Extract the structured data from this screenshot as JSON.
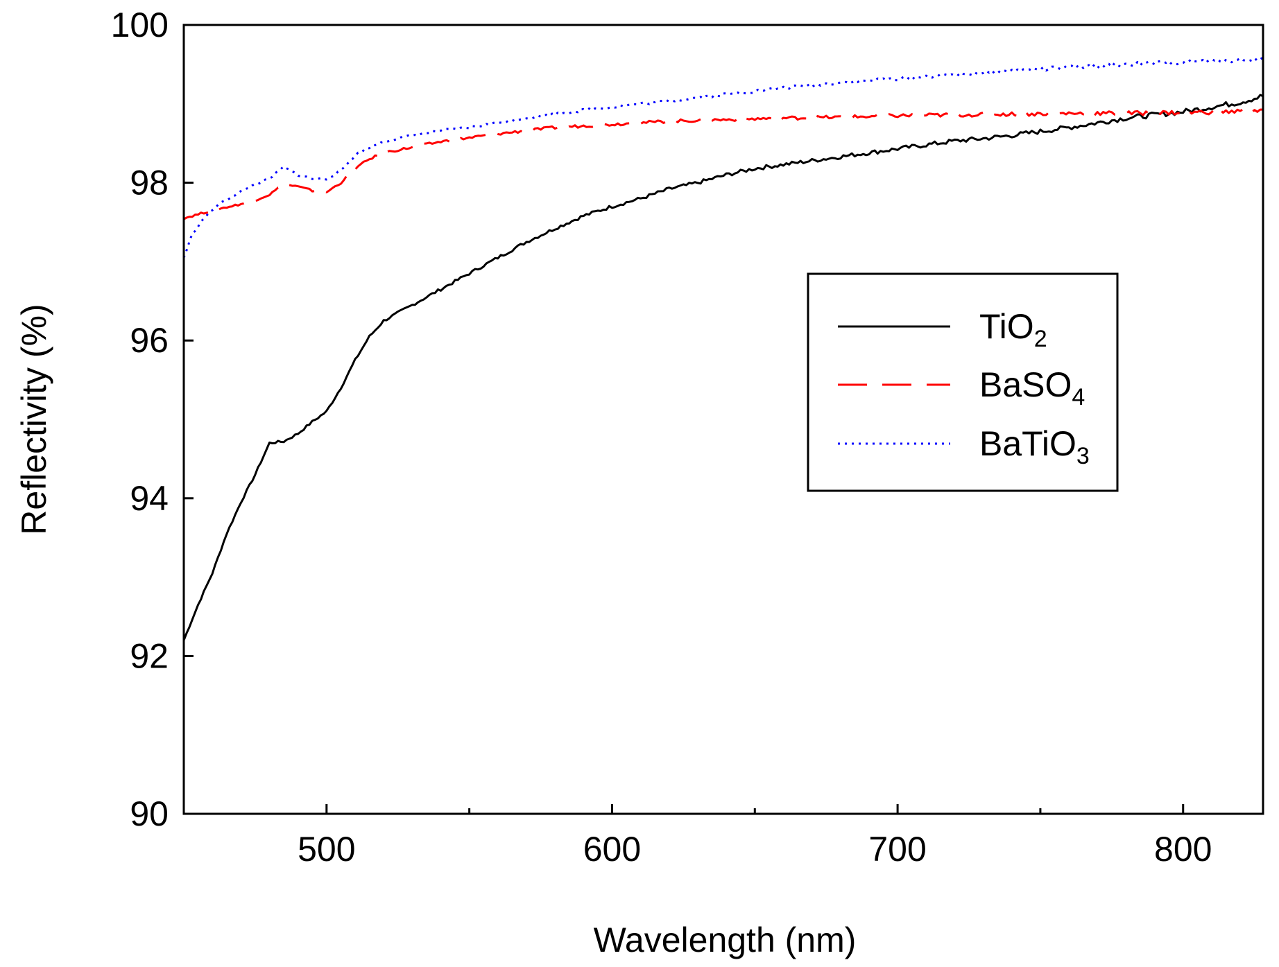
{
  "chart_data": {
    "type": "line",
    "title": "",
    "xlabel": "Wavelength (nm)",
    "ylabel": "Reflectivity (%)",
    "xlim": [
      450,
      828
    ],
    "ylim": [
      90,
      100
    ],
    "x_ticks": [
      500,
      600,
      700,
      800
    ],
    "x_minor_ticks": [
      450,
      550,
      650,
      750
    ],
    "y_ticks": [
      90,
      92,
      94,
      96,
      98,
      100
    ],
    "grid": false,
    "legend_position": "center-right",
    "series": [
      {
        "name": "TiO2",
        "label_main": "TiO",
        "label_sub": "2",
        "color": "#000000",
        "style": "solid",
        "x": [
          450,
          455,
          460,
          465,
          470,
          475,
          480,
          485,
          490,
          495,
          500,
          505,
          510,
          515,
          520,
          525,
          530,
          540,
          550,
          560,
          570,
          580,
          590,
          600,
          610,
          620,
          630,
          640,
          650,
          660,
          670,
          680,
          690,
          700,
          710,
          720,
          730,
          740,
          750,
          760,
          770,
          780,
          790,
          800,
          810,
          820,
          828
        ],
        "y": [
          92.2,
          92.65,
          93.05,
          93.55,
          93.95,
          94.3,
          94.7,
          94.72,
          94.82,
          94.97,
          95.1,
          95.4,
          95.75,
          96.05,
          96.25,
          96.35,
          96.45,
          96.65,
          96.85,
          97.05,
          97.25,
          97.42,
          97.58,
          97.7,
          97.8,
          97.92,
          98.0,
          98.1,
          98.18,
          98.23,
          98.28,
          98.33,
          98.38,
          98.43,
          98.48,
          98.53,
          98.56,
          98.6,
          98.65,
          98.7,
          98.76,
          98.82,
          98.86,
          98.9,
          98.96,
          99.02,
          99.1
        ]
      },
      {
        "name": "BaSO4",
        "label_main": "BaSO",
        "label_sub": "4",
        "color": "#ff0000",
        "style": "dashed",
        "x": [
          450,
          460,
          470,
          475,
          480,
          485,
          490,
          495,
          500,
          505,
          510,
          515,
          520,
          530,
          540,
          550,
          560,
          570,
          580,
          590,
          600,
          610,
          620,
          640,
          660,
          680,
          700,
          720,
          740,
          760,
          780,
          800,
          815,
          828
        ],
        "y": [
          97.55,
          97.65,
          97.73,
          97.78,
          97.85,
          97.98,
          97.95,
          97.9,
          97.88,
          98.0,
          98.18,
          98.3,
          98.38,
          98.45,
          98.52,
          98.57,
          98.62,
          98.66,
          98.7,
          98.72,
          98.74,
          98.76,
          98.78,
          98.8,
          98.82,
          98.83,
          98.85,
          98.86,
          98.87,
          98.88,
          98.88,
          98.89,
          98.9,
          98.92
        ]
      },
      {
        "name": "BaTiO3",
        "label_main": "BaTiO",
        "label_sub": "3",
        "color": "#0000ff",
        "style": "dotted",
        "x": [
          450,
          453,
          457,
          462,
          468,
          475,
          480,
          485,
          490,
          495,
          500,
          505,
          510,
          515,
          520,
          530,
          540,
          550,
          560,
          570,
          580,
          590,
          600,
          620,
          640,
          660,
          680,
          700,
          720,
          740,
          760,
          780,
          800,
          815,
          828
        ],
        "y": [
          97.05,
          97.35,
          97.55,
          97.72,
          97.85,
          97.98,
          98.05,
          98.2,
          98.1,
          98.05,
          98.05,
          98.15,
          98.35,
          98.45,
          98.52,
          98.6,
          98.66,
          98.7,
          98.76,
          98.82,
          98.87,
          98.92,
          98.96,
          99.04,
          99.12,
          99.2,
          99.27,
          99.32,
          99.37,
          99.42,
          99.46,
          99.5,
          99.53,
          99.55,
          99.57
        ]
      }
    ]
  }
}
